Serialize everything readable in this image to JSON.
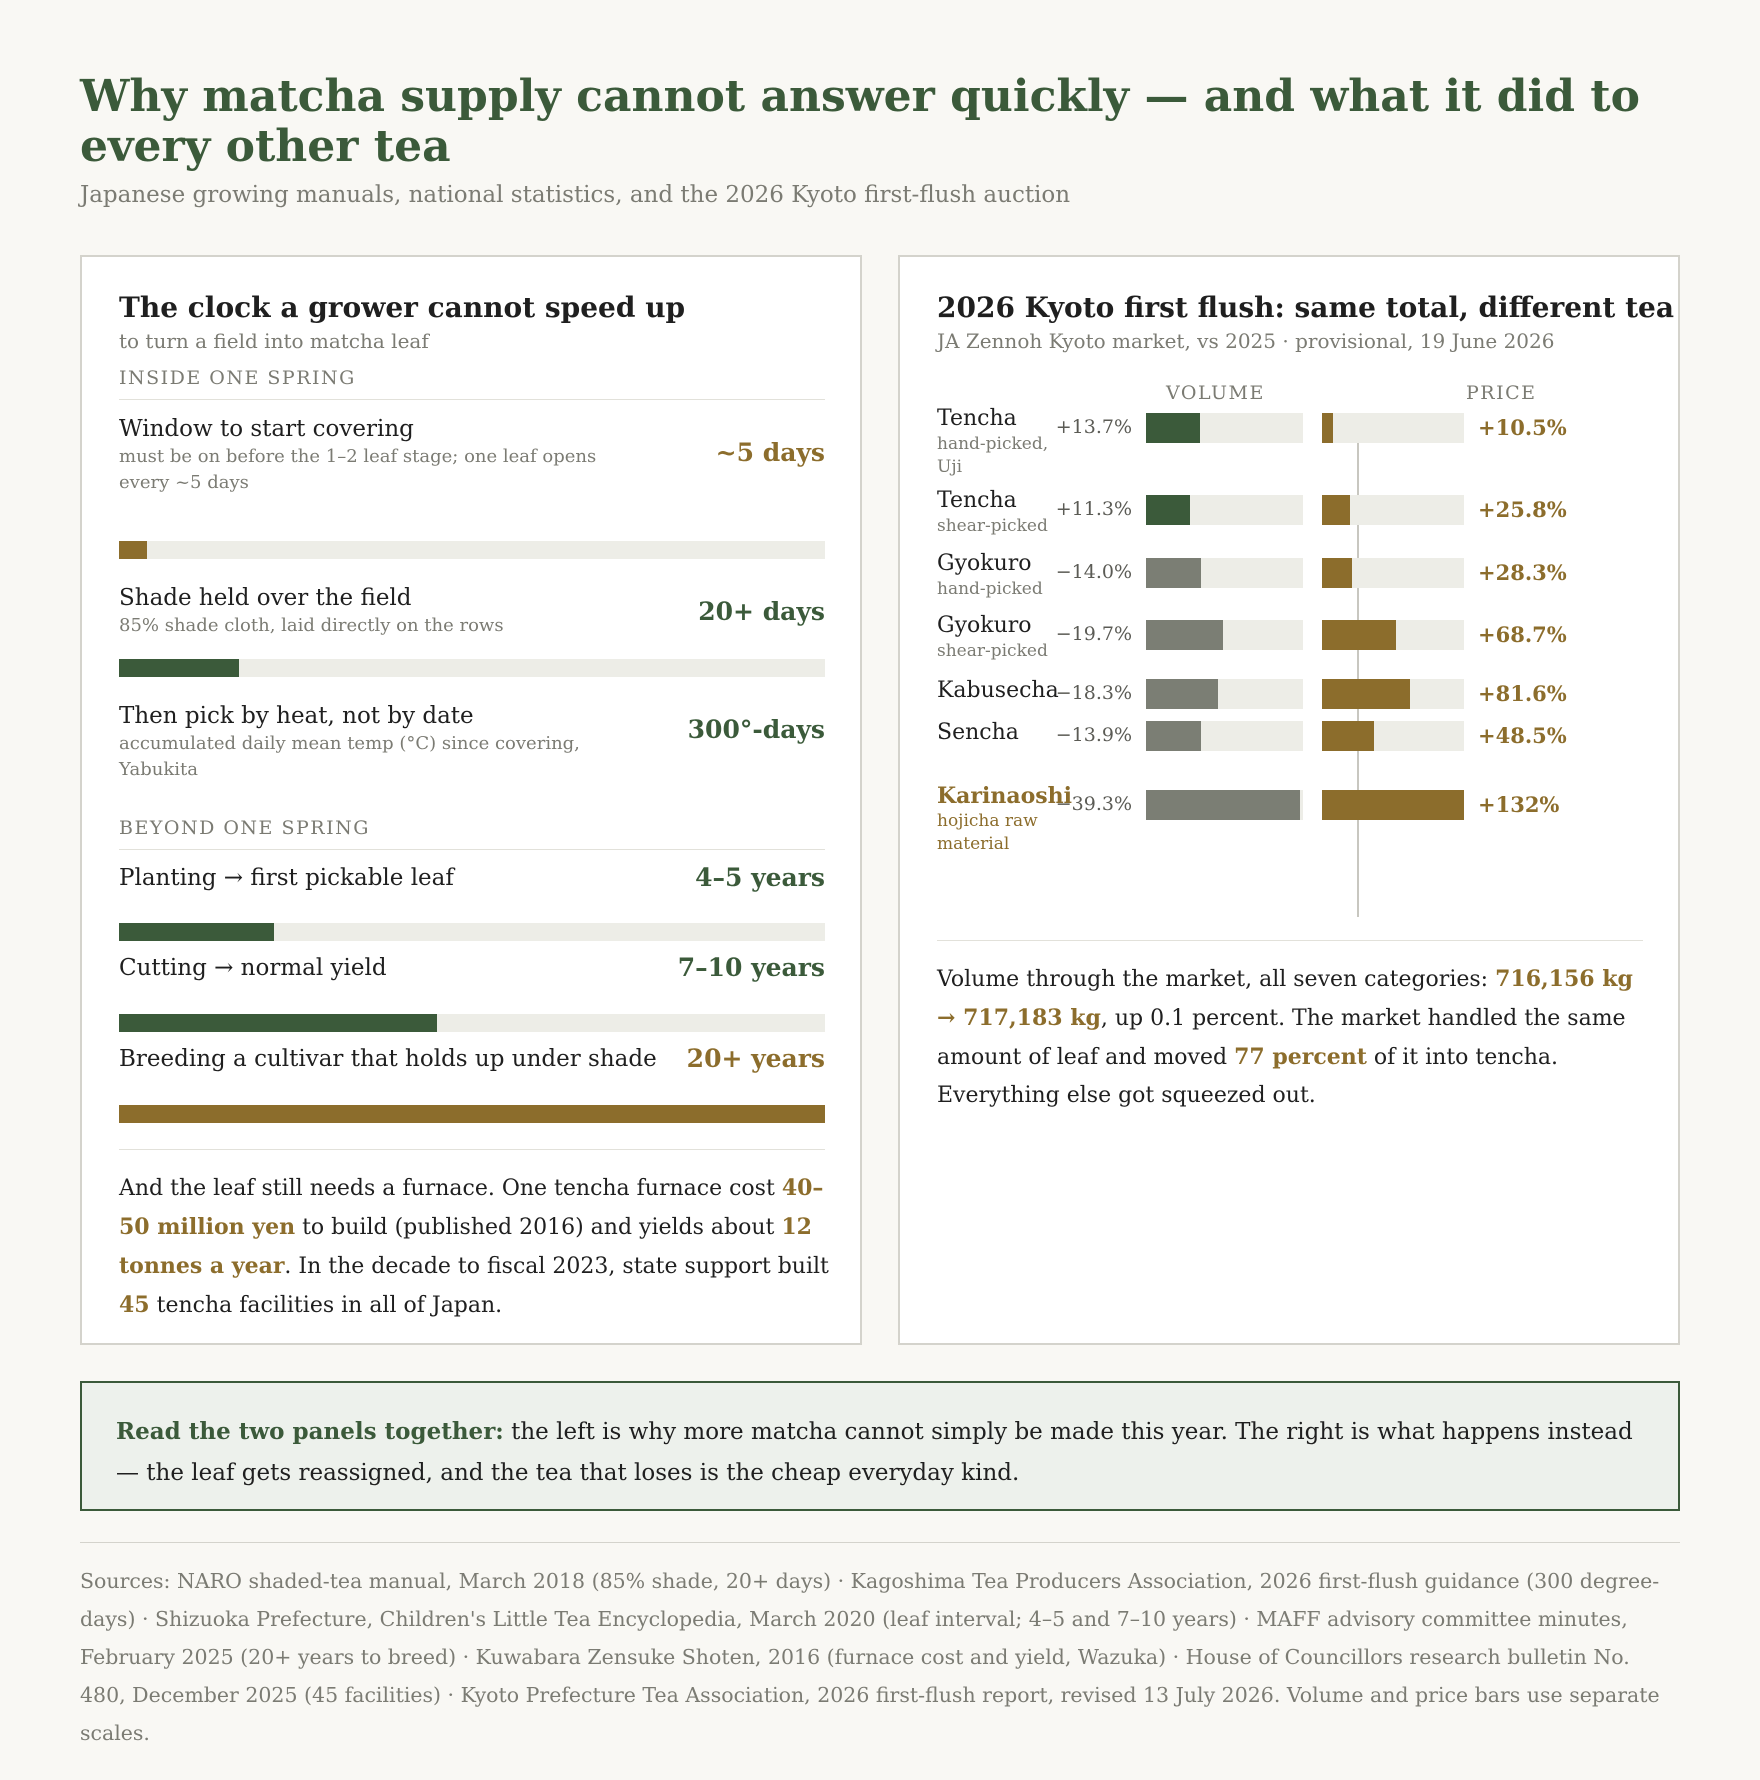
{
  "header": {
    "title": "Why matcha supply cannot answer quickly — and what it did to every other tea",
    "subtitle": "Japanese growing manuals, national statistics, and the 2026 Kyoto first-flush auction"
  },
  "left_panel": {
    "title": "The clock a grower cannot speed up",
    "subtitle": "to turn a field into matcha leaf",
    "section1_label": "INSIDE ONE SPRING",
    "section2_label": "BEYOND ONE SPRING",
    "rows": [
      {
        "label": "Window to start covering",
        "note": "must be on before the 1–2 leaf stage; one leaf opens every ~5 days",
        "value": "~5 days",
        "bar_fraction": 0.04,
        "color": "gold"
      },
      {
        "label": "Shade held over the field",
        "note": "85% shade cloth, laid directly on the rows",
        "value": "20+ days",
        "bar_fraction": 0.17,
        "color": "green"
      },
      {
        "label": "Then pick by heat, not by date",
        "note": "accumulated daily mean temp (°C) since covering, Yabukita",
        "value": "300°-days",
        "bar_fraction": null,
        "color": "green"
      },
      {
        "label": "Planting → first pickable leaf",
        "note": "",
        "value": "4–5 years",
        "bar_fraction": 0.22,
        "color": "green"
      },
      {
        "label": "Cutting → normal yield",
        "note": "",
        "value": "7–10 years",
        "bar_fraction": 0.45,
        "color": "green"
      },
      {
        "label": "Breeding a cultivar that holds up under shade",
        "note": "",
        "value": "20+ years",
        "bar_fraction": 1.0,
        "color": "gold"
      }
    ],
    "paragraph": {
      "p1": "And the leaf still needs a furnace. One tencha furnace cost ",
      "h1": "40–50 million yen",
      "p2": " to build (published 2016) and yields about ",
      "h2": "12 tonnes a year",
      "p3": ". In the decade to fiscal 2023, state support built ",
      "h3": "45",
      "p4": " tencha facilities in all of Japan."
    }
  },
  "right_panel": {
    "title": "2026 Kyoto first flush: same total, different tea",
    "subtitle": "JA Zennoh Kyoto market, vs 2025 · provisional, 19 June 2026",
    "volume_header": "VOLUME",
    "price_header": "PRICE",
    "paragraph": {
      "p1": "Volume through the market, all seven categories: ",
      "h1": "716,156 kg → 717,183 kg",
      "p2": ", up 0.1 percent. The market handled the same amount of leaf and moved ",
      "h2": "77 percent",
      "p3": " of it into tencha. Everything else got squeezed out."
    }
  },
  "chart_data": {
    "type": "bar",
    "categories": [
      "Tencha",
      "Tencha",
      "Gyokuro",
      "Gyokuro",
      "Kabusecha",
      "Sencha",
      "Karinaoshi"
    ],
    "category_notes": [
      "hand-picked, Uji",
      "shear-picked",
      "hand-picked",
      "shear-picked",
      "",
      "",
      "hojicha raw material"
    ],
    "series": [
      {
        "name": "VOLUME",
        "values": [
          13.7,
          11.3,
          -14.0,
          -19.7,
          -18.3,
          -13.9,
          -39.3
        ],
        "labels": [
          "+13.7%",
          "+11.3%",
          "−14.0%",
          "−19.7%",
          "−18.3%",
          "−13.9%",
          "−39.3%"
        ]
      },
      {
        "name": "PRICE",
        "values": [
          10.5,
          25.8,
          28.3,
          68.7,
          81.6,
          48.5,
          132
        ],
        "labels": [
          "+10.5%",
          "+25.8%",
          "+28.3%",
          "+68.7%",
          "+81.6%",
          "+48.5%",
          "+132%"
        ]
      }
    ],
    "colors": {
      "green": "#3b5a3a",
      "gray": "#7b7e74",
      "gold": "#8c6d2c",
      "track": "#edede7"
    }
  },
  "callout": {
    "lead": "Read the two panels together:",
    "text": " the left is why more matcha cannot simply be made this year. The right is what happens instead — the leaf gets reassigned, and the tea that loses is the cheap everyday kind."
  },
  "sources": "Sources: NARO shaded-tea manual, March 2018 (85% shade, 20+ days) · Kagoshima Tea Producers Association, 2026 first-flush guidance (300 degree-days) · Shizuoka Prefecture, Children's Little Tea Encyclopedia, March 2020 (leaf interval; 4–5 and 7–10 years) · MAFF advisory committee minutes, February 2025 (20+ years to breed) · Kuwabara Zensuke Shoten, 2016 (furnace cost and yield, Wazuka) · House of Councillors research bulletin No. 480, December 2025 (45 facilities) · Kyoto Prefecture Tea Association, 2026 first-flush report, revised 13 July 2026. Volume and price bars use separate scales."
}
